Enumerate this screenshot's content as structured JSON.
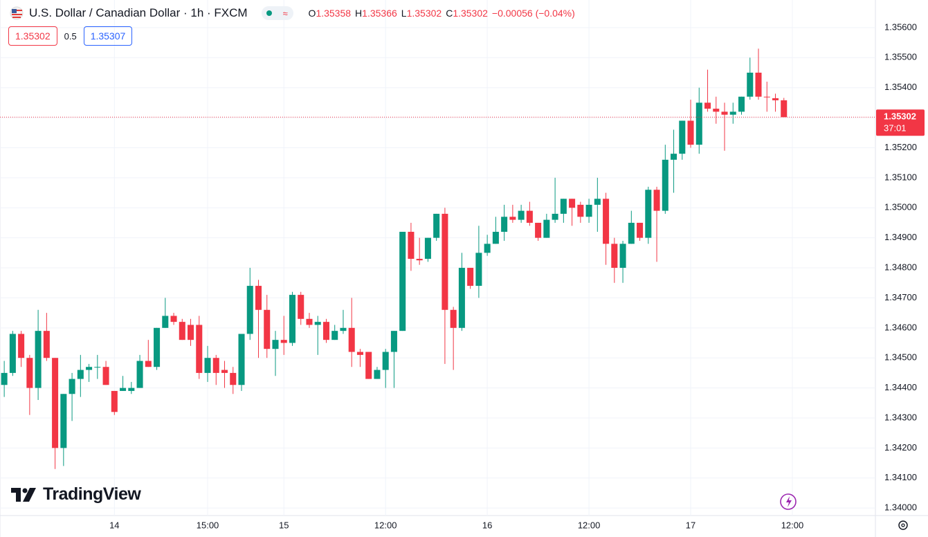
{
  "chart_data": {
    "type": "candlestick",
    "title": "U.S. Dollar / Canadian Dollar · 1h · FXCM",
    "legend": [
      {
        "label": "O",
        "value": "1.35358"
      },
      {
        "label": "H",
        "value": "1.35366"
      },
      {
        "label": "L",
        "value": "1.35302"
      },
      {
        "label": "C",
        "value": "1.35302"
      }
    ],
    "change": "−0.00056 (−0.04%)",
    "quote": {
      "bid": "1.35302",
      "spread": "0.5",
      "ask": "1.35307"
    },
    "brand": "TradingView",
    "up_color": "#089981",
    "down_color": "#f23645",
    "open": [
      1.3441,
      1.3445,
      1.3458,
      1.345,
      1.344,
      1.3459,
      1.345,
      1.342,
      1.3438,
      1.3443,
      1.3446,
      1.3447,
      1.3447,
      1.3439,
      1.3439,
      1.3439,
      1.344,
      1.3449,
      1.3447,
      1.346,
      1.3464,
      1.3462,
      1.3461,
      1.3461,
      1.3445,
      1.345,
      1.3446,
      1.3445,
      1.3441,
      1.3458,
      1.3474,
      1.3466,
      1.3453,
      1.3456,
      1.3455,
      1.3471,
      1.3463,
      1.3461,
      1.3462,
      1.3456,
      1.3459,
      1.346,
      1.3452,
      1.3452,
      1.3443,
      1.3446,
      1.3452,
      1.3459,
      1.3492,
      1.3483,
      1.3483,
      1.349,
      1.3498,
      1.3466,
      1.346,
      1.348,
      1.3474,
      1.3485,
      1.3488,
      1.3492,
      1.3497,
      1.3496,
      1.3499,
      1.3495,
      1.349,
      1.3496,
      1.3498,
      1.3503,
      1.3501,
      1.3497,
      1.3501,
      1.3503,
      1.3488,
      1.348,
      1.3488,
      1.3495,
      1.349,
      1.3506,
      1.3499,
      1.3516,
      1.3518,
      1.3529,
      1.3521,
      1.3535,
      1.3533,
      1.3532,
      1.3531,
      1.3532,
      1.3537,
      1.3545,
      1.3537,
      1.35365,
      1.35358
    ],
    "high": [
      1.3449,
      1.3459,
      1.3459,
      1.3451,
      1.3466,
      1.3465,
      1.345,
      1.3438,
      1.3445,
      1.3451,
      1.3448,
      1.3451,
      1.3449,
      1.3439,
      1.3444,
      1.3442,
      1.3451,
      1.3456,
      1.346,
      1.347,
      1.3465,
      1.3463,
      1.3463,
      1.3464,
      1.3454,
      1.3451,
      1.3449,
      1.3447,
      1.3458,
      1.348,
      1.3476,
      1.3471,
      1.3459,
      1.3464,
      1.3472,
      1.3472,
      1.3465,
      1.3464,
      1.3463,
      1.3461,
      1.3466,
      1.347,
      1.3453,
      1.3452,
      1.3447,
      1.3453,
      1.3459,
      1.3492,
      1.3495,
      1.349,
      1.349,
      1.3498,
      1.35,
      1.3467,
      1.3485,
      1.348,
      1.3494,
      1.3491,
      1.3497,
      1.3501,
      1.3501,
      1.3501,
      1.3502,
      1.3495,
      1.3498,
      1.351,
      1.3503,
      1.3503,
      1.3502,
      1.3503,
      1.351,
      1.3505,
      1.349,
      1.3489,
      1.3499,
      1.3495,
      1.3507,
      1.3507,
      1.3521,
      1.3526,
      1.3529,
      1.3536,
      1.354,
      1.3546,
      1.3537,
      1.3535,
      1.3535,
      1.3537,
      1.355,
      1.3553,
      1.3542,
      1.3538,
      1.35366
    ],
    "low": [
      1.3437,
      1.3444,
      1.3447,
      1.3431,
      1.3436,
      1.3449,
      1.3413,
      1.3414,
      1.3429,
      1.3437,
      1.3442,
      1.3443,
      1.3441,
      1.3431,
      1.3439,
      1.3438,
      1.344,
      1.3447,
      1.3446,
      1.346,
      1.3461,
      1.3456,
      1.3454,
      1.3443,
      1.3442,
      1.3441,
      1.344,
      1.3438,
      1.3439,
      1.3456,
      1.345,
      1.345,
      1.3444,
      1.3451,
      1.3454,
      1.3461,
      1.346,
      1.3451,
      1.3455,
      1.3456,
      1.3458,
      1.3447,
      1.3447,
      1.3443,
      1.3443,
      1.344,
      1.344,
      1.3459,
      1.3479,
      1.3481,
      1.3482,
      1.3489,
      1.3448,
      1.3446,
      1.3459,
      1.3473,
      1.347,
      1.3484,
      1.3488,
      1.3489,
      1.3495,
      1.3495,
      1.3494,
      1.3489,
      1.349,
      1.3495,
      1.3495,
      1.3494,
      1.3495,
      1.3495,
      1.3492,
      1.3481,
      1.3475,
      1.3475,
      1.3488,
      1.3489,
      1.3488,
      1.3482,
      1.3498,
      1.3505,
      1.3516,
      1.352,
      1.3518,
      1.3532,
      1.3528,
      1.3519,
      1.3528,
      1.3531,
      1.3536,
      1.3536,
      1.3532,
      1.3532,
      1.35302
    ],
    "close": [
      1.3445,
      1.3458,
      1.345,
      1.344,
      1.3459,
      1.345,
      1.342,
      1.3438,
      1.3443,
      1.3446,
      1.3447,
      1.3447,
      1.3441,
      1.3432,
      1.344,
      1.344,
      1.3449,
      1.3447,
      1.346,
      1.3464,
      1.3462,
      1.3456,
      1.3456,
      1.3445,
      1.345,
      1.3445,
      1.3445,
      1.3441,
      1.3458,
      1.3474,
      1.3466,
      1.3453,
      1.3456,
      1.3455,
      1.3471,
      1.3463,
      1.3461,
      1.3462,
      1.3456,
      1.3459,
      1.346,
      1.3452,
      1.3451,
      1.3443,
      1.3446,
      1.3452,
      1.3459,
      1.3492,
      1.3483,
      1.34825,
      1.349,
      1.3498,
      1.3466,
      1.346,
      1.348,
      1.3474,
      1.3485,
      1.3488,
      1.3492,
      1.3497,
      1.3496,
      1.3499,
      1.3495,
      1.349,
      1.3496,
      1.3498,
      1.3503,
      1.35,
      1.3497,
      1.3501,
      1.3503,
      1.3488,
      1.348,
      1.3488,
      1.3495,
      1.349,
      1.3506,
      1.3499,
      1.3516,
      1.3518,
      1.3529,
      1.3521,
      1.3535,
      1.3533,
      1.3532,
      1.3531,
      1.3532,
      1.3537,
      1.3545,
      1.3537,
      1.35368,
      1.35358,
      1.35302
    ],
    "xlim": [
      -0.5,
      102.8
    ],
    "xticks": [
      {
        "value": 13,
        "label": "14"
      },
      {
        "value": 24,
        "label": "15:00"
      },
      {
        "value": 33,
        "label": "15"
      },
      {
        "value": 45,
        "label": "12:00"
      },
      {
        "value": 57,
        "label": "16"
      },
      {
        "value": 69,
        "label": "12:00"
      },
      {
        "value": 81,
        "label": "17"
      },
      {
        "value": 93,
        "label": "12:00"
      }
    ],
    "ylim": [
      1.33975,
      1.35692
    ],
    "yticks": [
      {
        "value": 1.356,
        "label": "1.35600"
      },
      {
        "value": 1.355,
        "label": "1.35500"
      },
      {
        "value": 1.354,
        "label": "1.35400"
      },
      {
        "value": 1.353,
        "label": "1.35300"
      },
      {
        "value": 1.352,
        "label": "1.35200"
      },
      {
        "value": 1.351,
        "label": "1.35100"
      },
      {
        "value": 1.35,
        "label": "1.35000"
      },
      {
        "value": 1.349,
        "label": "1.34900"
      },
      {
        "value": 1.348,
        "label": "1.34800"
      },
      {
        "value": 1.347,
        "label": "1.34700"
      },
      {
        "value": 1.346,
        "label": "1.34600"
      },
      {
        "value": 1.345,
        "label": "1.34500"
      },
      {
        "value": 1.344,
        "label": "1.34400"
      },
      {
        "value": 1.343,
        "label": "1.34300"
      },
      {
        "value": 1.342,
        "label": "1.34200"
      },
      {
        "value": 1.341,
        "label": "1.34100"
      },
      {
        "value": 1.34,
        "label": "1.34000"
      }
    ],
    "grid": true,
    "last_price": {
      "value": 1.35302,
      "label": "1.35302"
    },
    "countdown": "37:01"
  }
}
